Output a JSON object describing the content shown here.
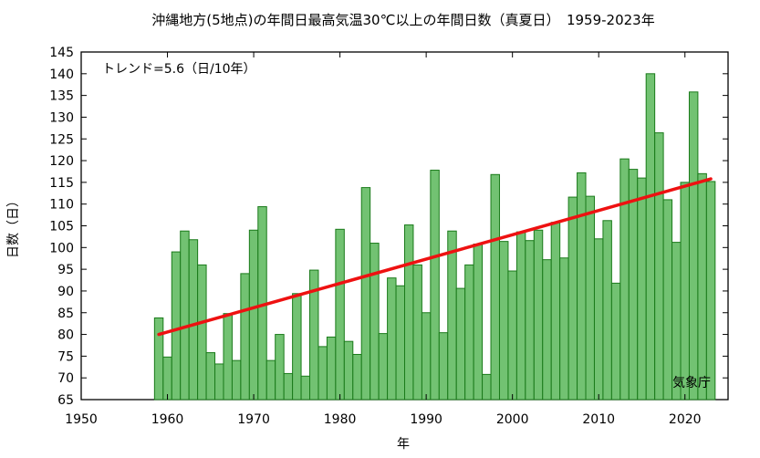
{
  "chart_data": {
    "type": "bar",
    "title": "沖縄地方(5地点)の年間日最高気温30℃以上の年間日数（真夏日）　1959-2023年",
    "xlabel": "年",
    "ylabel": "日数（日）",
    "trend_label": "トレンド=5.6（日/10年）",
    "source_label": "気象庁",
    "xlim": [
      1950,
      2025
    ],
    "ylim": [
      65,
      145
    ],
    "xticks": [
      1950,
      1960,
      1970,
      1980,
      1990,
      2000,
      2010,
      2020
    ],
    "yticks": [
      65,
      70,
      75,
      80,
      85,
      90,
      95,
      100,
      105,
      110,
      115,
      120,
      125,
      130,
      135,
      140,
      145
    ],
    "grid": false,
    "bar_color": "#72c272",
    "bar_edge_color": "#1a7a1a",
    "trend_color": "#ee1111",
    "x": [
      1959,
      1960,
      1961,
      1962,
      1963,
      1964,
      1965,
      1966,
      1967,
      1968,
      1969,
      1970,
      1971,
      1972,
      1973,
      1974,
      1975,
      1976,
      1977,
      1978,
      1979,
      1980,
      1981,
      1982,
      1983,
      1984,
      1985,
      1986,
      1987,
      1988,
      1989,
      1990,
      1991,
      1992,
      1993,
      1994,
      1995,
      1996,
      1997,
      1998,
      1999,
      2000,
      2001,
      2002,
      2003,
      2004,
      2005,
      2006,
      2007,
      2008,
      2009,
      2010,
      2011,
      2012,
      2013,
      2014,
      2015,
      2016,
      2017,
      2018,
      2019,
      2020,
      2021,
      2022,
      2023
    ],
    "values": [
      83.8,
      74.8,
      99.0,
      103.8,
      101.8,
      96.0,
      75.8,
      73.2,
      84.8,
      74.0,
      94.0,
      104.0,
      109.4,
      74.0,
      80.0,
      71.0,
      89.4,
      70.4,
      94.8,
      77.2,
      79.4,
      104.2,
      78.4,
      75.4,
      113.8,
      101.0,
      80.2,
      93.0,
      91.2,
      105.2,
      96.0,
      85.0,
      117.8,
      80.4,
      103.8,
      90.6,
      96.0,
      100.8,
      70.8,
      116.8,
      101.4,
      94.6,
      103.6,
      101.6,
      104.0,
      97.2,
      105.8,
      97.6,
      111.6,
      117.2,
      111.8,
      102.0,
      106.2,
      91.8,
      120.4,
      118.0,
      116.0,
      140.0,
      126.4,
      111.0,
      101.2,
      115.0,
      135.8,
      117.0,
      115.2
    ],
    "trend": {
      "start": [
        1959,
        80.0
      ],
      "end": [
        2023,
        115.8
      ]
    }
  }
}
